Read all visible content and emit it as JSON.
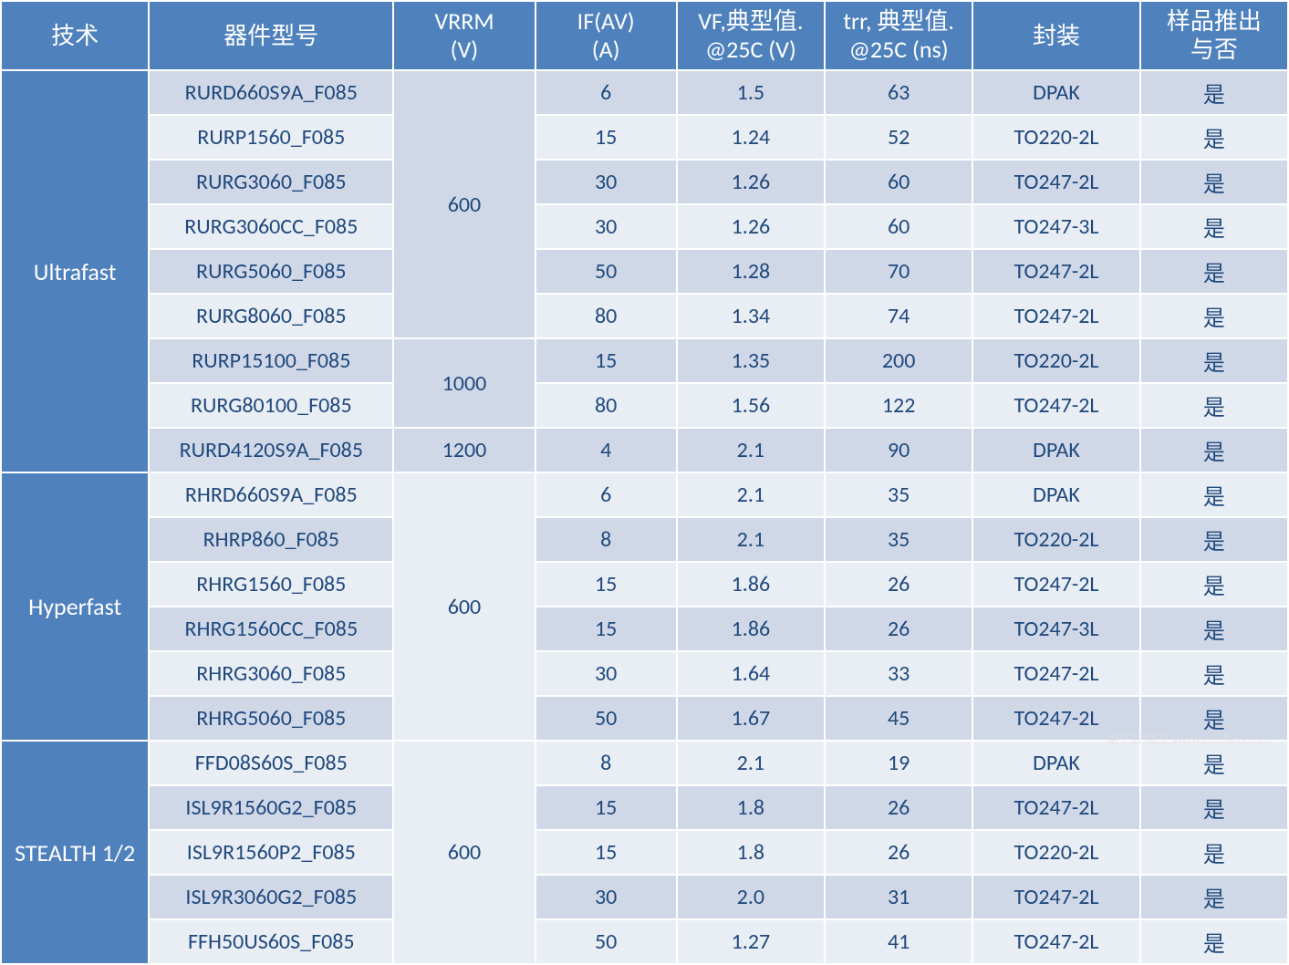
{
  "columns": [
    {
      "label": "技术",
      "width": "11.5%"
    },
    {
      "label": "器件型号",
      "width": "19%"
    },
    {
      "label": "VRRM\n(V)",
      "width": "11%"
    },
    {
      "label": "IF(AV)\n(A)",
      "width": "11%"
    },
    {
      "label": "VF,典型值.\n@25C (V)",
      "width": "11.5%"
    },
    {
      "label": "trr, 典型值.\n@25C (ns)",
      "width": "11.5%"
    },
    {
      "label": "封装",
      "width": "13%"
    },
    {
      "label": "样品推出\n与否",
      "width": "11.5%"
    }
  ],
  "groups": [
    {
      "category": "Ultrafast",
      "rows": [
        {
          "part": "RURD660S9A_F085",
          "vrrm": "600",
          "vrrm_span": 6,
          "ifav": "6",
          "vf": "1.5",
          "trr": "63",
          "pkg": "DPAK",
          "sample": "是"
        },
        {
          "part": "RURP1560_F085",
          "ifav": "15",
          "vf": "1.24",
          "trr": "52",
          "pkg": "TO220-2L",
          "sample": "是"
        },
        {
          "part": "RURG3060_F085",
          "ifav": "30",
          "vf": "1.26",
          "trr": "60",
          "pkg": "TO247-2L",
          "sample": "是"
        },
        {
          "part": "RURG3060CC_F085",
          "ifav": "30",
          "vf": "1.26",
          "trr": "60",
          "pkg": "TO247-3L",
          "sample": "是"
        },
        {
          "part": "RURG5060_F085",
          "ifav": "50",
          "vf": "1.28",
          "trr": "70",
          "pkg": "TO247-2L",
          "sample": "是"
        },
        {
          "part": "RURG8060_F085",
          "ifav": "80",
          "vf": "1.34",
          "trr": "74",
          "pkg": "TO247-2L",
          "sample": "是"
        },
        {
          "part": "RURP15100_F085",
          "vrrm": "1000",
          "vrrm_span": 2,
          "ifav": "15",
          "vf": "1.35",
          "trr": "200",
          "pkg": "TO220-2L",
          "sample": "是"
        },
        {
          "part": "RURG80100_F085",
          "ifav": "80",
          "vf": "1.56",
          "trr": "122",
          "pkg": "TO247-2L",
          "sample": "是"
        },
        {
          "part": "RURD4120S9A_F085",
          "vrrm": "1200",
          "vrrm_span": 1,
          "ifav": "4",
          "vf": "2.1",
          "trr": "90",
          "pkg": "DPAK",
          "sample": "是"
        }
      ]
    },
    {
      "category": "Hyperfast",
      "rows": [
        {
          "part": "RHRD660S9A_F085",
          "vrrm": "600",
          "vrrm_span": 6,
          "ifav": "6",
          "vf": "2.1",
          "trr": "35",
          "pkg": "DPAK",
          "sample": "是"
        },
        {
          "part": "RHRP860_F085",
          "ifav": "8",
          "vf": "2.1",
          "trr": "35",
          "pkg": "TO220-2L",
          "sample": "是"
        },
        {
          "part": "RHRG1560_F085",
          "ifav": "15",
          "vf": "1.86",
          "trr": "26",
          "pkg": "TO247-2L",
          "sample": "是"
        },
        {
          "part": "RHRG1560CC_F085",
          "ifav": "15",
          "vf": "1.86",
          "trr": "26",
          "pkg": "TO247-3L",
          "sample": "是"
        },
        {
          "part": "RHRG3060_F085",
          "ifav": "30",
          "vf": "1.64",
          "trr": "33",
          "pkg": "TO247-2L",
          "sample": "是"
        },
        {
          "part": "RHRG5060_F085",
          "ifav": "50",
          "vf": "1.67",
          "trr": "45",
          "pkg": "TO247-2L",
          "sample": "是"
        }
      ]
    },
    {
      "category": "STEALTH 1/2",
      "rows": [
        {
          "part": "FFD08S60S_F085",
          "vrrm": "600",
          "vrrm_span": 5,
          "ifav": "8",
          "vf": "2.1",
          "trr": "19",
          "pkg": "DPAK",
          "sample": "是"
        },
        {
          "part": "ISL9R1560G2_F085",
          "ifav": "15",
          "vf": "1.8",
          "trr": "26",
          "pkg": "TO247-2L",
          "sample": "是"
        },
        {
          "part": "ISL9R1560P2_F085",
          "ifav": "15",
          "vf": "1.8",
          "trr": "26",
          "pkg": "TO220-2L",
          "sample": "是"
        },
        {
          "part": "ISL9R3060G2_F085",
          "ifav": "30",
          "vf": "2.0",
          "trr": "31",
          "pkg": "TO247-2L",
          "sample": "是"
        },
        {
          "part": "FFH50US60S_F085",
          "ifav": "50",
          "vf": "1.27",
          "trr": "41",
          "pkg": "TO247-2L",
          "sample": "是"
        }
      ]
    }
  ],
  "colors": {
    "header_bg": "#4f81bd",
    "header_text": "#ffffff",
    "row_alt0": "#d0d8e8",
    "row_alt1": "#e9edf4",
    "cell_text": "#1f497d",
    "border": "#ffffff"
  },
  "watermark": "电子发烧友  www.elecfans.com"
}
